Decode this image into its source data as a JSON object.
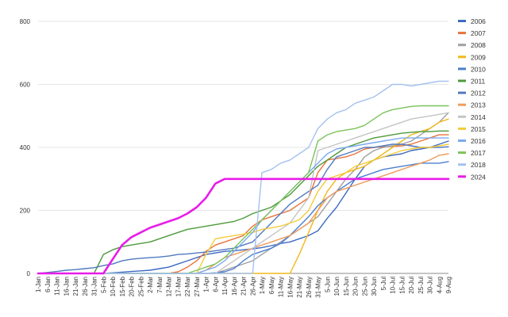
{
  "chart_data": {
    "type": "line",
    "title": "",
    "xlabel": "",
    "ylabel": "",
    "ylim": [
      0,
      800
    ],
    "yticks": [
      0,
      200,
      400,
      600,
      800
    ],
    "grid": true,
    "legend_position": "right",
    "categories": [
      "1-Jan",
      "6-Jan",
      "11-Jan",
      "16-Jan",
      "21-Jan",
      "26-Jan",
      "31-Jan",
      "5-Feb",
      "10-Feb",
      "15-Feb",
      "20-Feb",
      "25-Feb",
      "2-Mar",
      "7-Mar",
      "12-Mar",
      "17-Mar",
      "22-Mar",
      "27-Mar",
      "1-Apr",
      "6-Apr",
      "11-Apr",
      "16-Apr",
      "21-Apr",
      "26-Apr",
      "1-May",
      "6-May",
      "11-May",
      "16-May",
      "21-May",
      "26-May",
      "31-May",
      "5-Jun",
      "10-Jun",
      "15-Jun",
      "20-Jun",
      "25-Jun",
      "30-Jun",
      "5-Jul",
      "10-Jul",
      "15-Jul",
      "20-Jul",
      "25-Jul",
      "30-Jul",
      "4-Aug",
      "9-Aug"
    ],
    "series": [
      {
        "name": "2006",
        "color": "#3c6ac4",
        "values": [
          0,
          0,
          0,
          0,
          0,
          0,
          0,
          0,
          2,
          4,
          6,
          8,
          10,
          15,
          20,
          30,
          40,
          50,
          60,
          65,
          70,
          72,
          75,
          78,
          82,
          88,
          95,
          100,
          110,
          120,
          135,
          175,
          210,
          255,
          300,
          340,
          360,
          370,
          375,
          380,
          390,
          395,
          400,
          410,
          420
        ]
      },
      {
        "name": "2007",
        "color": "#e8733c",
        "values": [
          0,
          0,
          0,
          0,
          0,
          0,
          0,
          0,
          0,
          0,
          0,
          0,
          0,
          0,
          0,
          5,
          20,
          40,
          70,
          90,
          100,
          110,
          120,
          150,
          170,
          180,
          190,
          200,
          220,
          240,
          320,
          360,
          365,
          370,
          380,
          395,
          400,
          402,
          403,
          405,
          410,
          420,
          430,
          440,
          440
        ]
      },
      {
        "name": "2008",
        "color": "#a0a0a0",
        "values": [
          0,
          0,
          0,
          0,
          0,
          0,
          0,
          0,
          0,
          0,
          0,
          0,
          0,
          0,
          0,
          0,
          0,
          0,
          0,
          0,
          10,
          20,
          30,
          40,
          60,
          80,
          100,
          120,
          140,
          160,
          180,
          220,
          260,
          300,
          330,
          370,
          390,
          400,
          405,
          410,
          420,
          440,
          460,
          480,
          510
        ]
      },
      {
        "name": "2009",
        "color": "#f2b81a",
        "values": [
          0,
          0,
          0,
          0,
          0,
          0,
          0,
          0,
          0,
          0,
          0,
          0,
          0,
          0,
          0,
          0,
          0,
          0,
          0,
          0,
          0,
          0,
          0,
          0,
          0,
          0,
          0,
          0,
          60,
          130,
          200,
          260,
          300,
          320,
          330,
          340,
          360,
          380,
          400,
          420,
          440,
          450,
          460,
          480,
          490
        ]
      },
      {
        "name": "2010",
        "color": "#4a7fd0",
        "values": [
          0,
          0,
          0,
          0,
          0,
          0,
          0,
          0,
          0,
          0,
          0,
          0,
          0,
          0,
          0,
          0,
          0,
          0,
          0,
          2,
          5,
          15,
          40,
          60,
          70,
          80,
          95,
          120,
          150,
          180,
          215,
          240,
          260,
          280,
          300,
          310,
          320,
          330,
          335,
          340,
          345,
          350,
          350,
          350,
          355
        ]
      },
      {
        "name": "2011",
        "color": "#4d9a3a",
        "values": [
          0,
          0,
          0,
          0,
          0,
          0,
          0,
          60,
          75,
          85,
          90,
          95,
          100,
          110,
          120,
          130,
          140,
          145,
          150,
          155,
          160,
          165,
          175,
          190,
          200,
          210,
          230,
          250,
          280,
          310,
          340,
          360,
          380,
          400,
          410,
          420,
          430,
          435,
          440,
          445,
          448,
          450,
          450,
          452,
          452
        ]
      },
      {
        "name": "2012",
        "color": "#5079c0",
        "values": [
          0,
          3,
          6,
          10,
          12,
          15,
          18,
          25,
          30,
          40,
          45,
          48,
          50,
          52,
          55,
          60,
          62,
          65,
          68,
          72,
          76,
          80,
          90,
          100,
          130,
          160,
          190,
          220,
          240,
          260,
          280,
          330,
          370,
          380,
          390,
          400,
          400,
          405,
          410,
          410,
          405,
          400,
          400,
          400,
          402
        ]
      },
      {
        "name": "2013",
        "color": "#f09c5c",
        "values": [
          0,
          0,
          0,
          0,
          0,
          0,
          0,
          0,
          0,
          0,
          0,
          0,
          0,
          0,
          0,
          0,
          0,
          0,
          10,
          30,
          50,
          60,
          70,
          80,
          90,
          100,
          110,
          120,
          140,
          160,
          200,
          240,
          260,
          270,
          280,
          290,
          300,
          310,
          320,
          330,
          340,
          350,
          360,
          375,
          380
        ]
      },
      {
        "name": "2014",
        "color": "#c4c4c4",
        "values": [
          0,
          0,
          0,
          0,
          0,
          0,
          0,
          0,
          0,
          0,
          0,
          0,
          0,
          0,
          0,
          0,
          0,
          0,
          0,
          0,
          20,
          40,
          60,
          80,
          100,
          120,
          140,
          160,
          200,
          240,
          390,
          400,
          410,
          420,
          430,
          440,
          450,
          460,
          470,
          480,
          490,
          495,
          500,
          505,
          510
        ]
      },
      {
        "name": "2015",
        "color": "#f4cb3a",
        "values": [
          0,
          0,
          0,
          0,
          0,
          0,
          0,
          0,
          0,
          0,
          0,
          0,
          0,
          0,
          0,
          0,
          0,
          0,
          60,
          110,
          115,
          120,
          125,
          130,
          140,
          145,
          150,
          160,
          170,
          200,
          260,
          300,
          310,
          320,
          340,
          350,
          360,
          370,
          380,
          390,
          395,
          400,
          400,
          405,
          410
        ]
      },
      {
        "name": "2016",
        "color": "#7aaaf0",
        "values": [
          0,
          0,
          0,
          0,
          0,
          0,
          0,
          0,
          0,
          0,
          0,
          0,
          0,
          0,
          0,
          0,
          0,
          0,
          10,
          20,
          40,
          70,
          100,
          130,
          170,
          200,
          230,
          260,
          290,
          320,
          350,
          380,
          395,
          400,
          405,
          410,
          415,
          420,
          425,
          430,
          430,
          430,
          430,
          430,
          430
        ]
      },
      {
        "name": "2017",
        "color": "#7cc35a",
        "values": [
          0,
          0,
          0,
          0,
          0,
          0,
          0,
          0,
          0,
          0,
          0,
          0,
          0,
          0,
          0,
          0,
          0,
          10,
          20,
          30,
          50,
          80,
          110,
          140,
          170,
          200,
          230,
          260,
          290,
          320,
          420,
          440,
          450,
          455,
          460,
          470,
          490,
          510,
          520,
          525,
          530,
          532,
          532,
          532,
          532
        ]
      },
      {
        "name": "2018",
        "color": "#a4c2ee",
        "values": [
          0,
          0,
          0,
          0,
          0,
          0,
          0,
          0,
          0,
          0,
          0,
          0,
          0,
          0,
          0,
          0,
          0,
          0,
          0,
          0,
          0,
          0,
          0,
          0,
          320,
          330,
          350,
          360,
          380,
          400,
          460,
          490,
          510,
          520,
          540,
          550,
          560,
          580,
          600,
          600,
          595,
          600,
          605,
          610,
          610
        ]
      },
      {
        "name": "2024",
        "color": "#e81ce8",
        "values": [
          0,
          0,
          0,
          0,
          0,
          0,
          0,
          0,
          45,
          90,
          115,
          130,
          145,
          155,
          165,
          175,
          190,
          210,
          240,
          285,
          300,
          300,
          300,
          300,
          300,
          300,
          300,
          300,
          300,
          300,
          300,
          300,
          300,
          300,
          300,
          300,
          300,
          300,
          300,
          300,
          300,
          300,
          300,
          300,
          300
        ]
      }
    ]
  }
}
